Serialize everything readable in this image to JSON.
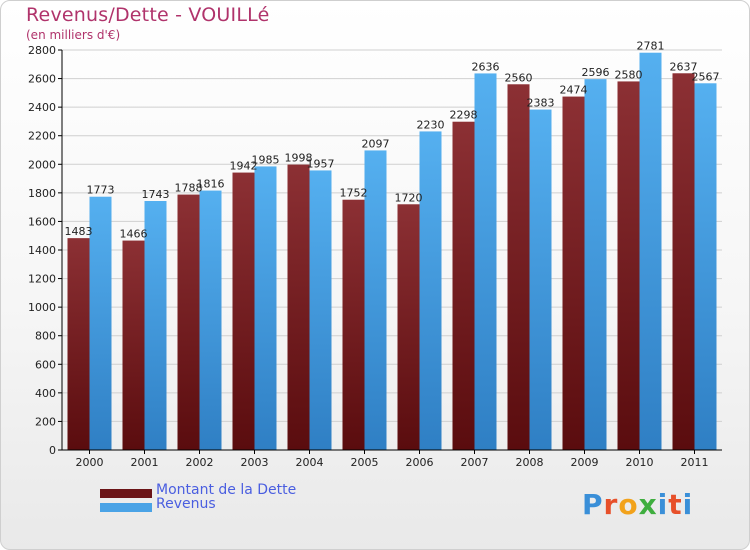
{
  "title": "Revenus/Dette - VOUILLé",
  "subtitle": "(en milliers d'€)",
  "logo_text": "Proxiti",
  "colors": {
    "dette": "#7a1f23",
    "revenus": "#4aa3e6",
    "title": "#b0336b",
    "legend_text": "#4a5ee0",
    "axis": "#000000",
    "grid": "#d0d0d0"
  },
  "chart_data": {
    "type": "bar",
    "title": "Revenus/Dette - VOUILLé",
    "subtitle": "(en milliers d'€)",
    "categories": [
      "2000",
      "2001",
      "2002",
      "2003",
      "2004",
      "2005",
      "2006",
      "2007",
      "2008",
      "2009",
      "2010",
      "2011"
    ],
    "series": [
      {
        "name": "Montant de la Dette",
        "values": [
          1483,
          1466,
          1788,
          1942,
          1998,
          1752,
          1720,
          2298,
          2560,
          2474,
          2580,
          2637
        ]
      },
      {
        "name": "Revenus",
        "values": [
          1773,
          1743,
          1816,
          1985,
          1957,
          2097,
          2230,
          2636,
          2383,
          2596,
          2781,
          2567
        ]
      }
    ],
    "ylim": [
      0,
      2800
    ],
    "yticks": [
      0,
      200,
      400,
      600,
      800,
      1000,
      1200,
      1400,
      1600,
      1800,
      2000,
      2200,
      2400,
      2600,
      2800
    ],
    "grid": true,
    "legend_position": "bottom-left"
  }
}
